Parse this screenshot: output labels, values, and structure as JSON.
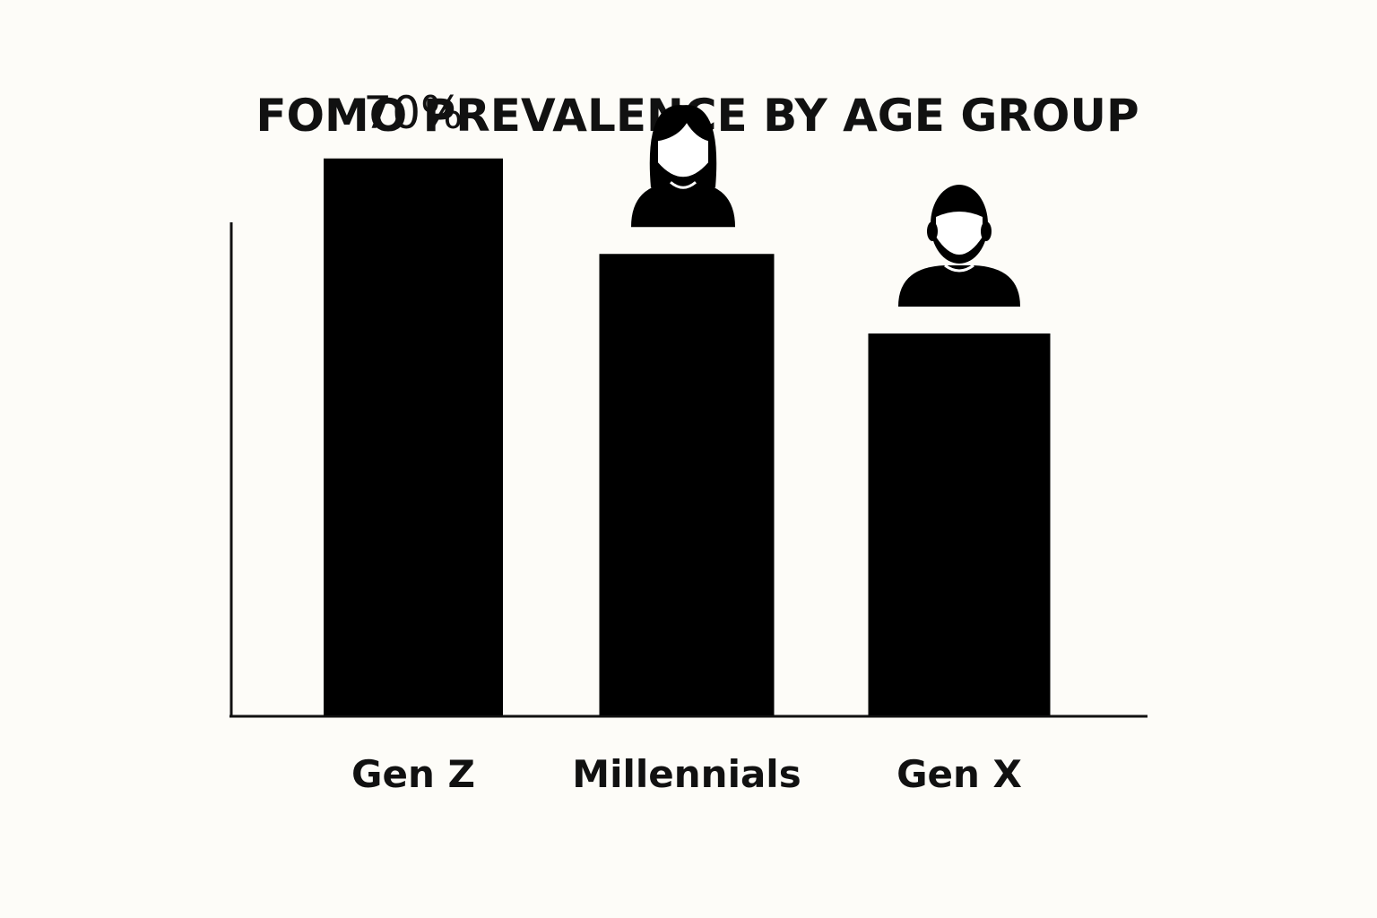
{
  "chart_data": {
    "type": "bar",
    "title": "FOMO PREVALENCE BY AGE GROUP",
    "categories": [
      "Gen Z",
      "Millennials",
      "Gen X"
    ],
    "values": [
      70,
      58,
      48
    ],
    "data_labels": [
      "70%",
      "",
      ""
    ],
    "icons": [
      "",
      "woman-avatar-icon",
      "man-avatar-icon"
    ],
    "xlabel": "",
    "ylabel": "",
    "ylim": [
      0,
      80
    ],
    "grid": false,
    "legend": "none",
    "colors": {
      "bar": "#000000",
      "axis": "#111111",
      "background": "#fdfcf8"
    }
  }
}
